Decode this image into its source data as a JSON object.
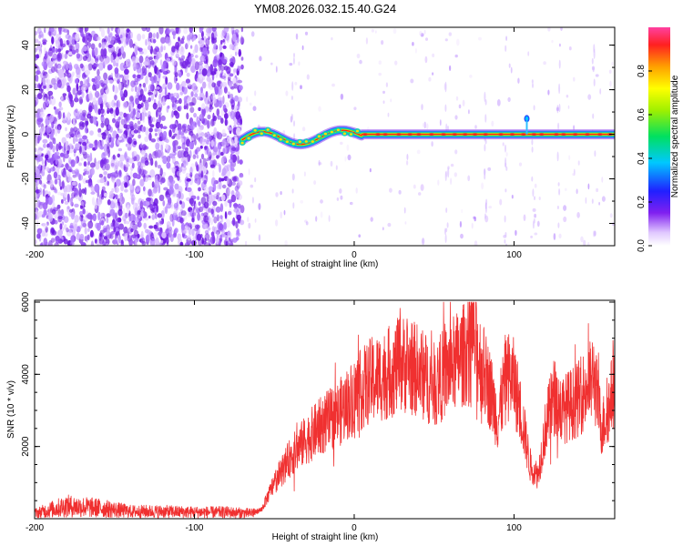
{
  "title": "YM08.2026.032.15.40.G24",
  "colors": {
    "snr_line": "#f03030",
    "scatter_base": "#7a28e8",
    "band_core": "#ff1a1a"
  },
  "chart_data": [
    {
      "type": "heatmap",
      "title": "YM08.2026.032.15.40.G24",
      "xlabel": "Height of straight line (km)",
      "ylabel": "Frequency (Hz)",
      "xlim": [
        -200,
        163
      ],
      "ylim": [
        -50,
        48
      ],
      "x_ticks": [
        -200,
        -100,
        0,
        100
      ],
      "y_ticks": [
        -40,
        -20,
        0,
        20,
        40
      ],
      "colorbar": {
        "label": "Normalized spectral amplitude",
        "range": [
          0,
          1
        ],
        "ticks": [
          "0.0",
          "0.2",
          "0.4",
          "0.6",
          "0.8"
        ],
        "tick_values": [
          0.0,
          0.2,
          0.4,
          0.6,
          0.8
        ]
      },
      "features": {
        "noise_region_x": [
          -200,
          -70
        ],
        "band_wobble_x": [
          -70,
          5
        ],
        "band_steady_x": [
          5,
          163
        ],
        "band_frequency_hz": 0,
        "spike_x_km": 108
      }
    },
    {
      "type": "line",
      "xlabel": "Height of straight line (km)",
      "ylabel": "SNR (10 * v/v)",
      "xlim": [
        -200,
        163
      ],
      "ylim": [
        0,
        6050
      ],
      "x_ticks": [
        -200,
        -100,
        0,
        100
      ],
      "y_ticks": [
        2000,
        4000,
        6000
      ],
      "envelope": {
        "x": [
          -200,
          -180,
          -160,
          -140,
          -120,
          -100,
          -80,
          -65,
          -58,
          -50,
          -40,
          -30,
          -20,
          -10,
          0,
          10,
          20,
          30,
          40,
          50,
          60,
          70,
          73,
          80,
          85,
          90,
          95,
          100,
          105,
          110,
          115,
          120,
          125,
          130,
          140,
          150,
          155,
          160,
          163
        ],
        "y": [
          150,
          350,
          300,
          200,
          200,
          180,
          180,
          150,
          250,
          1000,
          1700,
          2200,
          2600,
          2900,
          3400,
          3800,
          4000,
          4300,
          4100,
          3700,
          4200,
          4600,
          5200,
          4200,
          3600,
          2700,
          4000,
          3800,
          2800,
          1500,
          1200,
          2600,
          3400,
          3000,
          3300,
          3900,
          2500,
          3200,
          3800
        ]
      }
    }
  ]
}
